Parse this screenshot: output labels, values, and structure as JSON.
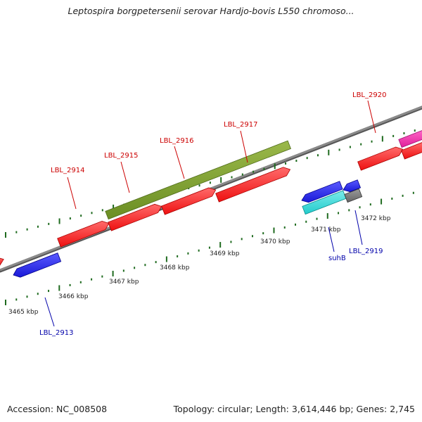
{
  "title": "Leptospira borgpetersenii serovar Hardjo-bovis L550 chromoso...",
  "footer": {
    "accession": "Accession: NC_008508",
    "summary": "Topology: circular; Length: 3,614,446 bp; Genes: 2,745"
  },
  "colors": {
    "background": "#ffffff",
    "backbone": "#8a8a8a",
    "forward_gene": "#ee1111",
    "reverse_gene": "#1a1ad8",
    "orf_green": "#6b8e23",
    "cyan_feature": "#22cccc",
    "grey_feature": "#666666",
    "magenta_feature": "#e0209a",
    "tick_green": "#1f6b1f",
    "forward_label": "#cc0000",
    "reverse_label": "#0000aa"
  },
  "scale_labels": [
    "3465 kbp",
    "3466 kbp",
    "3467 kbp",
    "3468 kbp",
    "3469 kbp",
    "3470 kbp",
    "3471 kbp",
    "3472 kbp"
  ],
  "gene_labels": {
    "forward": [
      "LBL_2914",
      "LBL_2915",
      "LBL_2916",
      "LBL_2917",
      "LBL_2920"
    ],
    "reverse": [
      "LBL_2913",
      "suhB",
      "LBL_2919"
    ]
  }
}
